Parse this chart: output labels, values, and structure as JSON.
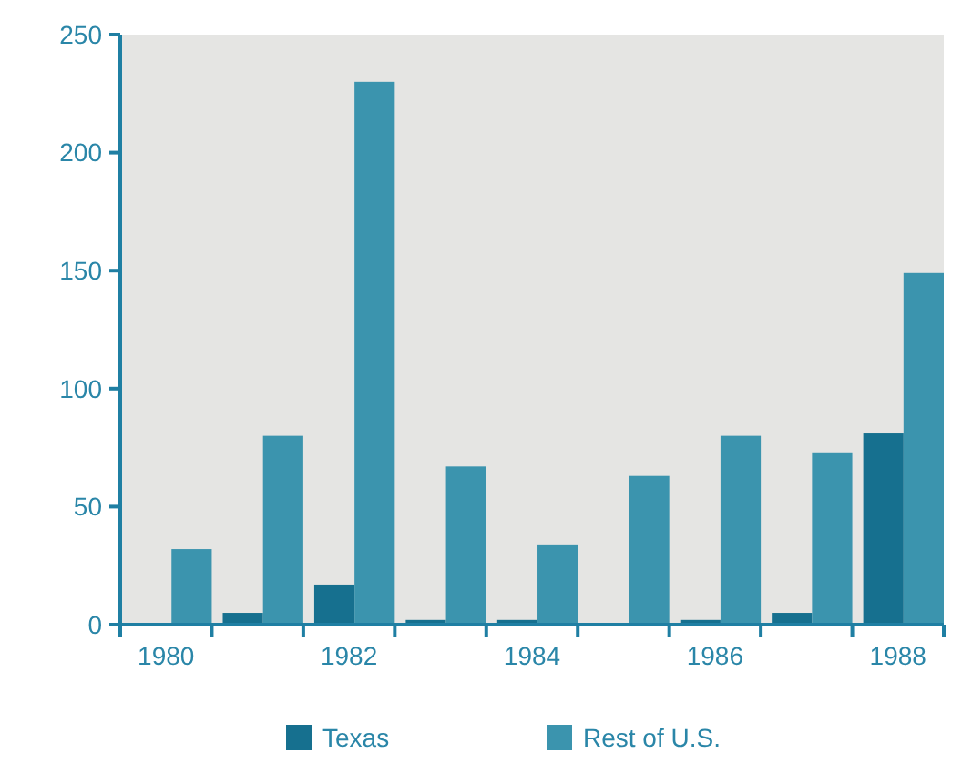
{
  "chart_data": {
    "type": "bar",
    "categories": [
      "1980",
      null,
      "1982",
      null,
      "1984",
      null,
      "1986",
      null,
      "1988"
    ],
    "series": [
      {
        "name": "Texas",
        "color": "#16708f",
        "values": [
          0,
          5,
          17,
          2,
          2,
          0,
          2,
          5,
          81
        ]
      },
      {
        "name": "Rest of U.S.",
        "color": "#3b94ae",
        "values": [
          32,
          80,
          230,
          67,
          34,
          63,
          80,
          73,
          149
        ]
      }
    ],
    "ylim": [
      0,
      250
    ],
    "yticks": [
      0,
      50,
      100,
      150,
      200,
      250
    ],
    "grid": false,
    "legend": "bottom"
  }
}
